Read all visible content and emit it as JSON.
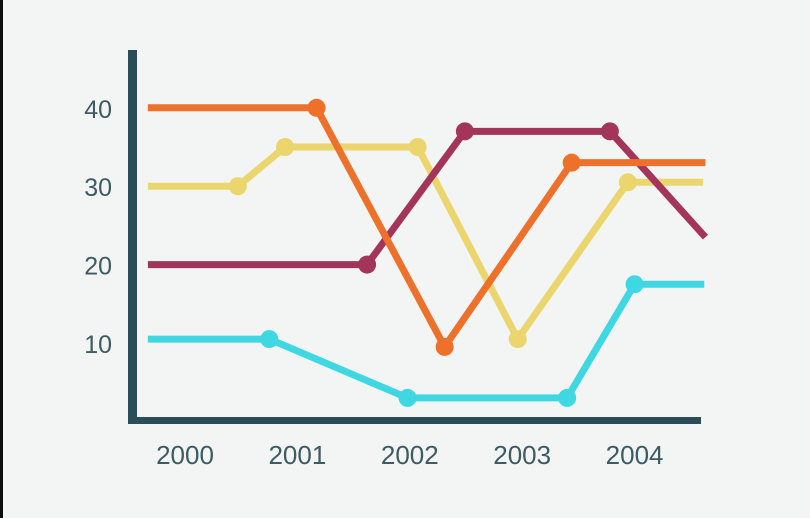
{
  "colors": {
    "background": "#f3f4f4",
    "axis": "#2b4d58",
    "tick_label": "#3c5b63",
    "left_edge": "#0d0d0d"
  },
  "chart_data": {
    "type": "line",
    "title": "",
    "xlabel": "",
    "ylabel": "",
    "grid": false,
    "legend": "none",
    "x_labels": [
      "2000",
      "2001",
      "2002",
      "2003",
      "2004"
    ],
    "x_label_years": [
      2000,
      2001,
      2002,
      2003,
      2004
    ],
    "y_ticks": [
      10,
      20,
      30,
      40
    ],
    "x_range_years": [
      1999.67,
      2004.63
    ],
    "y_range": [
      0,
      47.4
    ],
    "series": [
      {
        "name": "cyan",
        "color": "#3fd8e2",
        "points": [
          {
            "x": 1999.67,
            "y": 10.5,
            "dot": false
          },
          {
            "x": 2000.75,
            "y": 10.5,
            "dot": true
          },
          {
            "x": 2001.98,
            "y": 3.0,
            "dot": true
          },
          {
            "x": 2003.4,
            "y": 3.0,
            "dot": true
          },
          {
            "x": 2004.0,
            "y": 17.5,
            "dot": true
          },
          {
            "x": 2004.62,
            "y": 17.5,
            "dot": false
          }
        ]
      },
      {
        "name": "yellow",
        "color": "#ebd56d",
        "points": [
          {
            "x": 1999.67,
            "y": 30.0,
            "dot": false
          },
          {
            "x": 2000.47,
            "y": 30.0,
            "dot": true
          },
          {
            "x": 2000.89,
            "y": 35.0,
            "dot": true
          },
          {
            "x": 2002.07,
            "y": 35.0,
            "dot": true
          },
          {
            "x": 2002.96,
            "y": 10.5,
            "dot": true
          },
          {
            "x": 2003.94,
            "y": 30.5,
            "dot": true
          },
          {
            "x": 2004.61,
            "y": 30.5,
            "dot": false
          }
        ]
      },
      {
        "name": "maroon",
        "color": "#a23559",
        "points": [
          {
            "x": 1999.67,
            "y": 20.0,
            "dot": false
          },
          {
            "x": 2001.62,
            "y": 20.0,
            "dot": true
          },
          {
            "x": 2002.49,
            "y": 37.0,
            "dot": true
          },
          {
            "x": 2003.78,
            "y": 37.0,
            "dot": true
          },
          {
            "x": 2004.63,
            "y": 23.5,
            "dot": false
          }
        ]
      },
      {
        "name": "orange",
        "color": "#ed712b",
        "points": [
          {
            "x": 1999.67,
            "y": 40.0,
            "dot": false
          },
          {
            "x": 2001.17,
            "y": 40.0,
            "dot": true
          },
          {
            "x": 2002.31,
            "y": 9.5,
            "dot": true
          },
          {
            "x": 2003.44,
            "y": 33.0,
            "dot": true
          },
          {
            "x": 2004.63,
            "y": 33.0,
            "dot": false
          }
        ]
      }
    ]
  }
}
